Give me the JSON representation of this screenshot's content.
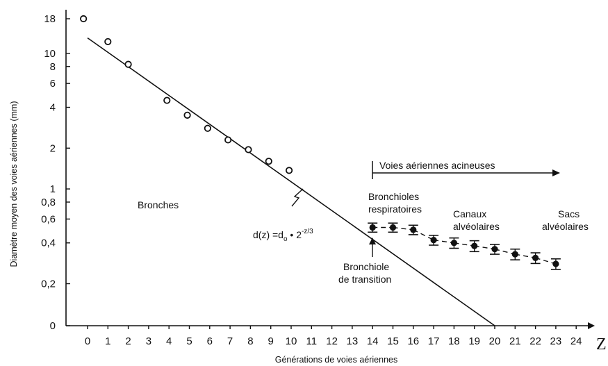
{
  "chart_data": {
    "type": "scatter",
    "xlabel": "Générations de voies aériennes",
    "ylabel": "Diamètre moyen des voies aériennes (mm)",
    "x_axis_end_label": "Z",
    "y_scale": "log",
    "x_ticks": [
      "0",
      "1",
      "2",
      "3",
      "4",
      "5",
      "6",
      "7",
      "8",
      "9",
      "10",
      "11",
      "12",
      "13",
      "14",
      "15",
      "16",
      "17",
      "18",
      "19",
      "20",
      "21",
      "22",
      "23",
      "24"
    ],
    "y_ticks": [
      {
        "label": "18",
        "value": 18
      },
      {
        "label": "10",
        "value": 10
      },
      {
        "label": "8",
        "value": 8
      },
      {
        "label": "6",
        "value": 6
      },
      {
        "label": "4",
        "value": 4
      },
      {
        "label": "2",
        "value": 2
      },
      {
        "label": "1",
        "value": 1
      },
      {
        "label": "0,8",
        "value": 0.8
      },
      {
        "label": "0,6",
        "value": 0.6
      },
      {
        "label": "0,4",
        "value": 0.4
      },
      {
        "label": "0,2",
        "value": 0.2
      },
      {
        "label": "0",
        "value": 0.098
      }
    ],
    "series": [
      {
        "marker": "open-circle",
        "points": [
          {
            "x": -0.2,
            "y": 18
          },
          {
            "x": 1,
            "y": 12.2
          },
          {
            "x": 2,
            "y": 8.3
          },
          {
            "x": 3.9,
            "y": 4.5
          },
          {
            "x": 4.9,
            "y": 3.5
          },
          {
            "x": 5.9,
            "y": 2.8
          },
          {
            "x": 6.9,
            "y": 2.3
          },
          {
            "x": 7.9,
            "y": 1.95
          },
          {
            "x": 8.9,
            "y": 1.6
          },
          {
            "x": 9.9,
            "y": 1.37
          }
        ]
      },
      {
        "marker": "filled-circle-errorbar",
        "points": [
          {
            "x": 14,
            "y": 0.52,
            "err": 0.04
          },
          {
            "x": 15,
            "y": 0.52,
            "err": 0.04
          },
          {
            "x": 16,
            "y": 0.5,
            "err": 0.04
          },
          {
            "x": 17,
            "y": 0.42,
            "err": 0.035
          },
          {
            "x": 18,
            "y": 0.4,
            "err": 0.035
          },
          {
            "x": 19,
            "y": 0.38,
            "err": 0.035
          },
          {
            "x": 20,
            "y": 0.36,
            "err": 0.03
          },
          {
            "x": 21,
            "y": 0.33,
            "err": 0.03
          },
          {
            "x": 22,
            "y": 0.31,
            "err": 0.028
          },
          {
            "x": 23,
            "y": 0.28,
            "err": 0.025
          }
        ]
      },
      {
        "marker": "line",
        "points": [
          {
            "x": 0,
            "y": 13
          },
          {
            "x": 20,
            "y": 0.098
          }
        ]
      }
    ],
    "annotations": {
      "bronches": "Bronches",
      "formula_main": "d(z) =d",
      "formula_sub": "o",
      "formula_mid": " • 2",
      "formula_sup": "-z/3",
      "acinar": "Voies aériennes acineuses",
      "resp_line1": "Bronchioles",
      "resp_line2": "respiratoires",
      "canaux_line1": "Canaux",
      "canaux_line2": "alvéolaires",
      "sacs_line1": "Sacs",
      "sacs_line2": "alvéolaires",
      "trans_line1": "Bronchiole",
      "trans_line2": "de transition"
    }
  }
}
